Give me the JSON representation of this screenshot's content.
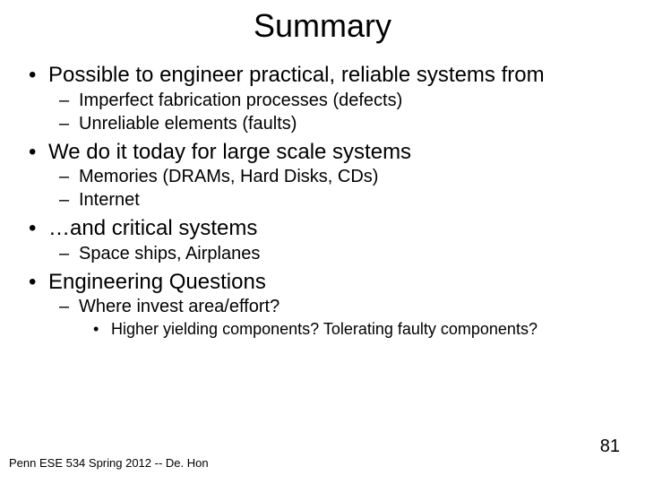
{
  "title": "Summary",
  "bullets": {
    "b1": "Possible to engineer practical, reliable systems from",
    "b1a": "Imperfect fabrication processes (defects)",
    "b1b": "Unreliable elements (faults)",
    "b2": "We do it today for large scale systems",
    "b2a": "Memories (DRAMs, Hard Disks, CDs)",
    "b2b": "Internet",
    "b3": "…and critical systems",
    "b3a": "Space ships, Airplanes",
    "b4": "Engineering Questions",
    "b4a": "Where invest area/effort?",
    "b4a1": "Higher yielding components? Tolerating faulty components?"
  },
  "footer": "Penn ESE 534 Spring 2012 -- De. Hon",
  "page_number": "81",
  "colors": {
    "background": "#ffffff",
    "text": "#000000"
  },
  "typography": {
    "title_fontsize": 36,
    "l1_fontsize": 24,
    "l2_fontsize": 20,
    "l3_fontsize": 18,
    "footer_fontsize": 13,
    "pagenum_fontsize": 20,
    "font_family": "Arial"
  }
}
